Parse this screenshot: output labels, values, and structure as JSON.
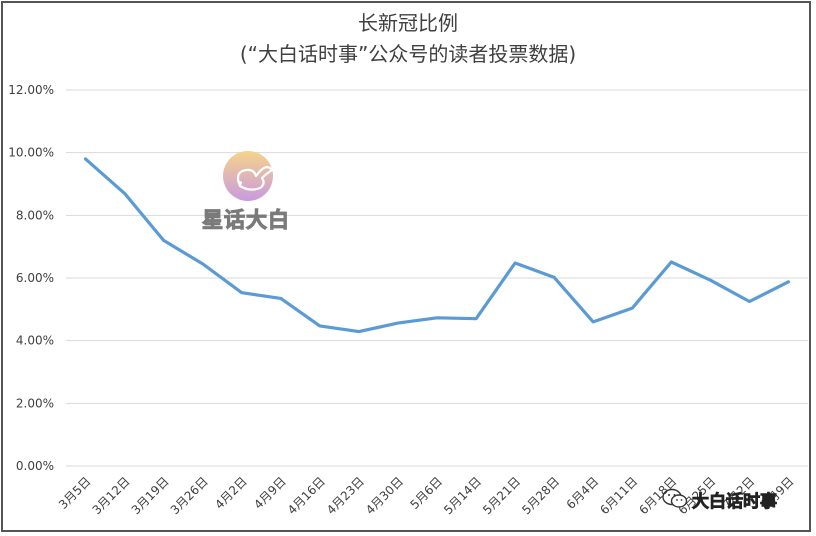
{
  "chart_data": {
    "type": "line",
    "title": "长新冠比例",
    "subtitle": "(“大白话时事”公众号的读者投票数据)",
    "xlabel": "",
    "ylabel": "",
    "ylim": [
      0,
      0.12
    ],
    "yticks": [
      "0.00%",
      "2.00%",
      "4.00%",
      "6.00%",
      "8.00%",
      "10.00%",
      "12.00%"
    ],
    "grid": true,
    "categories": [
      "3月5日",
      "3月12日",
      "3月19日",
      "3月26日",
      "4月2日",
      "4月9日",
      "4月16日",
      "4月23日",
      "4月30日",
      "5月6日",
      "5月14日",
      "5月21日",
      "5月28日",
      "6月4日",
      "6月11日",
      "6月18日",
      "6月25日",
      "7月2日",
      "7月9日"
    ],
    "series": [
      {
        "values": [
          0.098,
          0.087,
          0.072,
          0.0645,
          0.0553,
          0.0535,
          0.0447,
          0.0429,
          0.0456,
          0.0473,
          0.047,
          0.0648,
          0.0602,
          0.046,
          0.0504,
          0.0651,
          0.0593,
          0.0525,
          0.0588
        ],
        "color": "#5b9bd5"
      }
    ]
  },
  "watermark": {
    "text": "星话大白",
    "logo_icon": "rabbit-icon",
    "logo_colors": [
      "#f6d38a",
      "#c99ae0"
    ]
  },
  "wechat_mark": {
    "icon": "wechat-icon",
    "text": "大白话时事"
  }
}
